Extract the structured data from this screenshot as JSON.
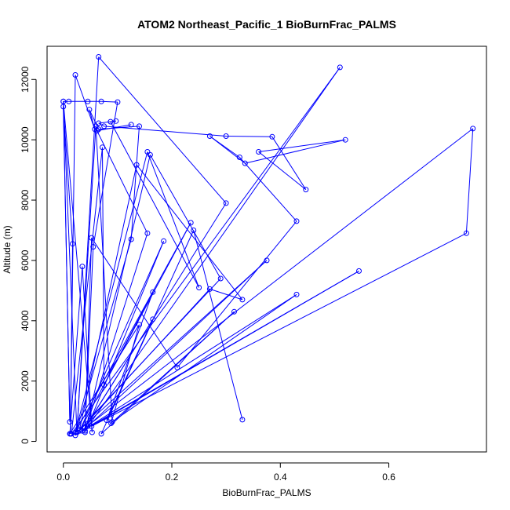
{
  "chart_data": {
    "type": "line",
    "title": "ATOM2 Northeast_Pacific_1 BioBurnFrac_PALMS",
    "xlabel": "BioBurnFrac_PALMS",
    "ylabel": "Altitude (m)",
    "xlim": [
      -0.03,
      0.78
    ],
    "ylim": [
      -350,
      13100
    ],
    "x_ticks": [
      0.0,
      0.2,
      0.4,
      0.6
    ],
    "x_tick_labels": [
      "0.0",
      "0.2",
      "0.4",
      "0.6"
    ],
    "y_ticks": [
      0,
      2000,
      4000,
      6000,
      8000,
      10000,
      12000
    ],
    "y_tick_labels": [
      "0",
      "2000",
      "4000",
      "6000",
      "8000",
      "10000",
      "12000"
    ],
    "grid": false,
    "legend": "none",
    "marker": "open-circle",
    "series": [
      {
        "color": "#0000ff",
        "points": [
          [
            0.125,
            10500
          ],
          [
            0.062,
            10300
          ],
          [
            0.155,
            6900
          ],
          [
            0.04,
            350
          ],
          [
            0.51,
            12400
          ],
          [
            0.015,
            250
          ],
          [
            0.072,
            9750
          ],
          [
            0.075,
            1870
          ],
          [
            0.235,
            7250
          ],
          [
            0.022,
            300
          ],
          [
            0.155,
            9600
          ],
          [
            0.25,
            5100
          ],
          [
            0.087,
            10600
          ],
          [
            0.097,
            10620
          ],
          [
            0.065,
            10550
          ],
          [
            0.075,
            10450
          ],
          [
            0.3,
            10120
          ],
          [
            0.385,
            10100
          ],
          [
            0.447,
            8350
          ],
          [
            0.36,
            9600
          ],
          [
            0.52,
            10000
          ],
          [
            0.335,
            9220
          ],
          [
            0.27,
            10120
          ],
          [
            0.325,
            9420
          ],
          [
            0.43,
            7300
          ],
          [
            0.21,
            2450
          ],
          [
            0.052,
            6750
          ],
          [
            0.04,
            300
          ],
          [
            0.16,
            9500
          ],
          [
            0.29,
            5400
          ],
          [
            0.03,
            400
          ],
          [
            0.135,
            9170
          ],
          [
            0.33,
            4700
          ],
          [
            0.27,
            5050
          ],
          [
            0.05,
            750
          ],
          [
            0.3,
            7900
          ],
          [
            0.065,
            12750
          ],
          [
            0.025,
            300
          ],
          [
            0.0,
            11270
          ],
          [
            0.012,
            650
          ],
          [
            0.0,
            11100
          ],
          [
            0.017,
            6550
          ],
          [
            0.013,
            250
          ],
          [
            0.022,
            12150
          ],
          [
            0.058,
            10350
          ],
          [
            0.048,
            11000
          ],
          [
            0.065,
            10350
          ],
          [
            0.14,
            10450
          ],
          [
            0.125,
            6700
          ],
          [
            0.022,
            200
          ],
          [
            0.755,
            10370
          ],
          [
            0.743,
            6900
          ],
          [
            0.052,
            500
          ],
          [
            0.545,
            5650
          ],
          [
            0.035,
            350
          ],
          [
            0.43,
            4870
          ],
          [
            0.09,
            650
          ],
          [
            0.06,
            10450
          ],
          [
            0.025,
            300
          ],
          [
            0.375,
            6000
          ],
          [
            0.045,
            500
          ],
          [
            0.185,
            6640
          ],
          [
            0.03,
            350
          ],
          [
            0.165,
            4950
          ],
          [
            0.08,
            700
          ],
          [
            0.165,
            4050
          ],
          [
            0.04,
            450
          ],
          [
            0.055,
            6450
          ],
          [
            0.1,
            11250
          ],
          [
            0.07,
            11270
          ],
          [
            0.045,
            11270
          ],
          [
            0.01,
            11270
          ],
          [
            0.0,
            11270
          ],
          [
            0.053,
            300
          ],
          [
            0.035,
            5800
          ],
          [
            0.012,
            250
          ],
          [
            0.14,
            3870
          ],
          [
            0.088,
            600
          ],
          [
            0.315,
            4300
          ],
          [
            0.07,
            250
          ],
          [
            0.24,
            7000
          ],
          [
            0.33,
            720
          ]
        ]
      }
    ]
  }
}
